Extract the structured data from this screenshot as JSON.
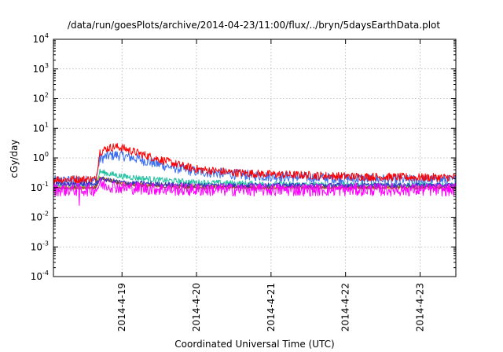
{
  "chart_data": {
    "type": "line",
    "title": "/data/run/goesPlots/archive/2014-04-23/11:00/flux/../bryn/5daysEarthData.plot",
    "xlabel": "Coordinated Universal Time (UTC)",
    "ylabel": "cGy/day",
    "yscale": "log",
    "ylim": [
      0.0001,
      10000
    ],
    "xlim": [
      -0.92,
      4.48
    ],
    "x_reference_date": "2014-04-19",
    "grid": true,
    "y_ticks": [
      {
        "value": 0.0001,
        "base": "10",
        "exp": "-4"
      },
      {
        "value": 0.001,
        "base": "10",
        "exp": "-3"
      },
      {
        "value": 0.01,
        "base": "10",
        "exp": "-2"
      },
      {
        "value": 0.1,
        "base": "10",
        "exp": "-1"
      },
      {
        "value": 1,
        "base": "10",
        "exp": "0"
      },
      {
        "value": 10,
        "base": "10",
        "exp": "1"
      },
      {
        "value": 100,
        "base": "10",
        "exp": "2"
      },
      {
        "value": 1000,
        "base": "10",
        "exp": "3"
      },
      {
        "value": 10000,
        "base": "10",
        "exp": "4"
      }
    ],
    "x_ticks": [
      {
        "value": 0,
        "label": "2014-4-19"
      },
      {
        "value": 1,
        "label": "2014-4-20"
      },
      {
        "value": 2,
        "label": "2014-4-21"
      },
      {
        "value": 3,
        "label": "2014-4-22"
      },
      {
        "value": 4,
        "label": "2014-4-23"
      }
    ],
    "series": [
      {
        "color": "#3a6df0",
        "noise": 0.18,
        "x": [
          -0.92,
          -0.4,
          -0.35,
          -0.3,
          -0.2,
          -0.1,
          0.0,
          0.2,
          0.5,
          0.8,
          1.0,
          1.5,
          2.0,
          3.0,
          4.0,
          4.48
        ],
        "y": [
          0.17,
          0.17,
          0.17,
          0.9,
          1.15,
          1.25,
          1.2,
          0.95,
          0.6,
          0.42,
          0.35,
          0.28,
          0.24,
          0.2,
          0.18,
          0.18
        ]
      },
      {
        "color": "#ff0000",
        "noise": 0.14,
        "x": [
          -0.92,
          -0.4,
          -0.35,
          -0.3,
          -0.2,
          -0.1,
          0.0,
          0.2,
          0.5,
          0.8,
          1.0,
          1.5,
          2.0,
          3.0,
          4.0,
          4.48
        ],
        "y": [
          0.19,
          0.19,
          0.19,
          1.6,
          2.1,
          2.4,
          2.2,
          1.5,
          0.9,
          0.55,
          0.42,
          0.32,
          0.28,
          0.24,
          0.22,
          0.22
        ]
      },
      {
        "color": "#20c0a0",
        "noise": 0.1,
        "x": [
          -0.92,
          -0.4,
          -0.35,
          -0.3,
          -0.2,
          0.0,
          0.5,
          1.0,
          2.0,
          3.0,
          4.0,
          4.48
        ],
        "y": [
          0.11,
          0.11,
          0.11,
          0.35,
          0.3,
          0.24,
          0.18,
          0.15,
          0.13,
          0.12,
          0.12,
          0.12
        ]
      },
      {
        "color": "#e0a000",
        "noise": 0.06,
        "x": [
          -0.92,
          -0.4,
          -0.35,
          -0.3,
          0.0,
          0.5,
          1.0,
          2.0,
          3.0,
          4.0,
          4.48
        ],
        "y": [
          0.1,
          0.1,
          0.1,
          0.22,
          0.14,
          0.12,
          0.11,
          0.1,
          0.1,
          0.1,
          0.1
        ]
      },
      {
        "color": "#8b3a3a",
        "noise": 0.06,
        "x": [
          -0.92,
          -0.4,
          -0.35,
          -0.3,
          0.0,
          0.5,
          1.0,
          2.0,
          3.0,
          4.0,
          4.48
        ],
        "y": [
          0.1,
          0.1,
          0.1,
          0.2,
          0.13,
          0.11,
          0.1,
          0.1,
          0.1,
          0.1,
          0.1
        ]
      },
      {
        "color": "#3030c0",
        "noise": 0.08,
        "x": [
          -0.92,
          -0.4,
          -0.35,
          -0.3,
          0.0,
          0.5,
          1.0,
          2.0,
          3.0,
          4.0,
          4.48
        ],
        "y": [
          0.13,
          0.13,
          0.13,
          0.2,
          0.15,
          0.13,
          0.12,
          0.12,
          0.12,
          0.12,
          0.12
        ]
      },
      {
        "color": "#ff00ff",
        "noise": 0.22,
        "x": [
          -0.92,
          -0.4,
          -0.35,
          -0.3,
          0.0,
          0.5,
          1.0,
          2.0,
          3.0,
          4.0,
          4.48
        ],
        "y": [
          0.085,
          0.085,
          0.085,
          0.13,
          0.1,
          0.09,
          0.085,
          0.085,
          0.085,
          0.085,
          0.085
        ]
      }
    ]
  }
}
